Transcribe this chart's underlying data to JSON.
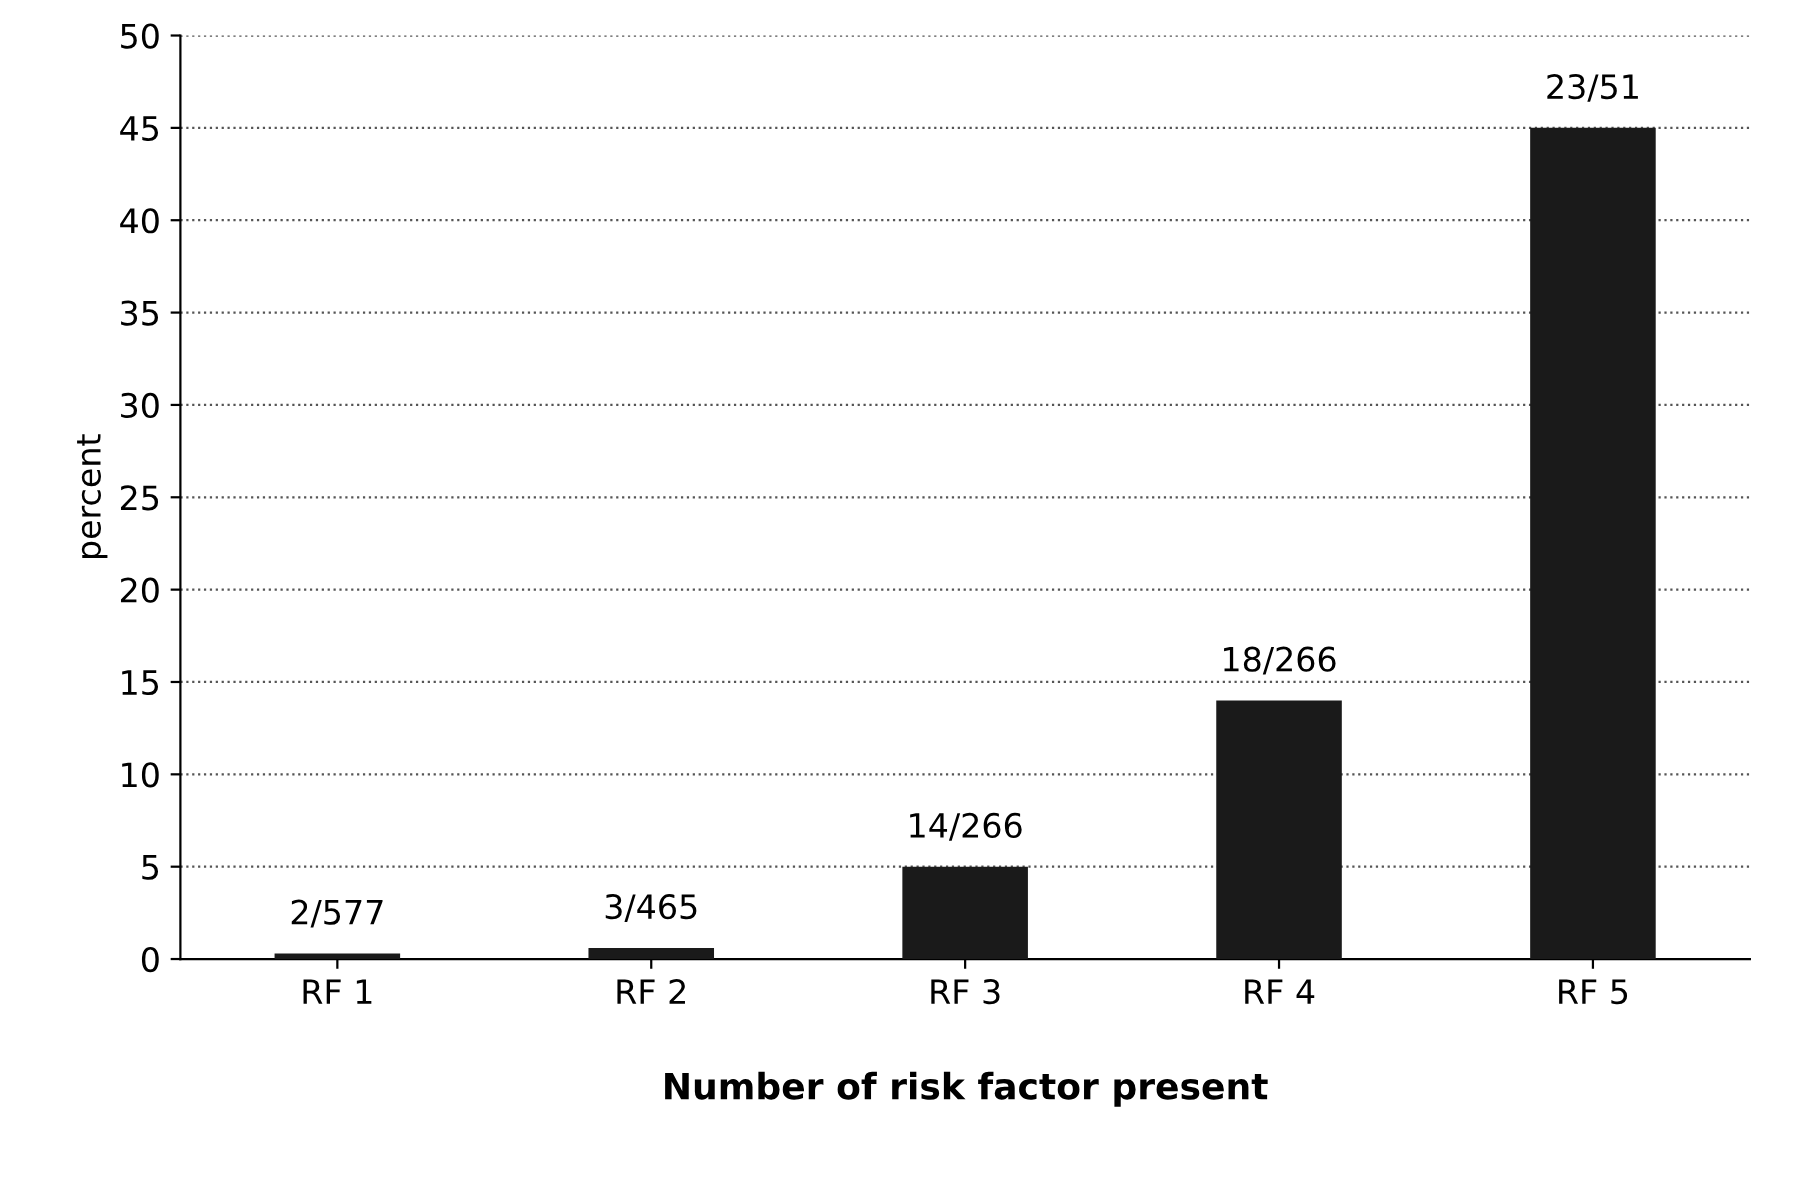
{
  "chart_data": {
    "type": "bar",
    "xlabel": "Number of risk factor present",
    "ylabel": "percent",
    "categories": [
      "RF 1",
      "RF 2",
      "RF 3",
      "RF 4",
      "RF 5"
    ],
    "values": [
      0.3,
      0.6,
      5,
      14,
      45
    ],
    "value_labels": [
      "2/577",
      "3/465",
      "14/266",
      "18/266",
      "23/51"
    ],
    "color": "#1a1a1a",
    "ylim": [
      0,
      50
    ],
    "yticks": [
      0,
      5,
      10,
      15,
      20,
      25,
      30,
      35,
      40,
      45,
      50
    ],
    "grid": "y"
  }
}
